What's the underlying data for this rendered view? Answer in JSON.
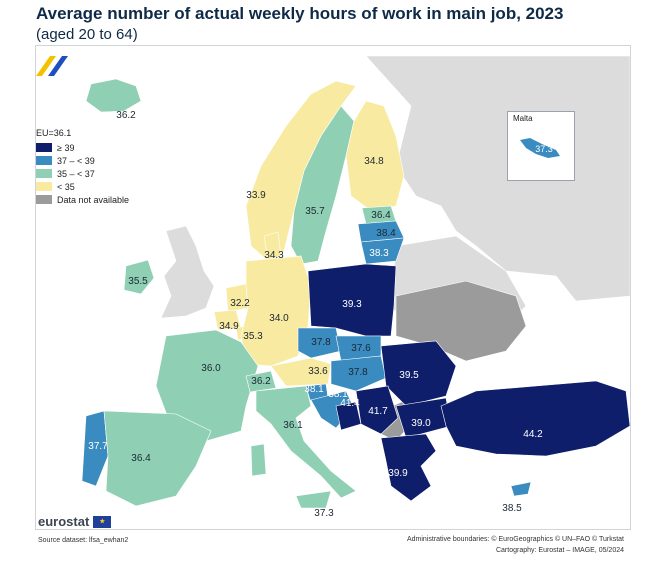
{
  "title": "Average number of actual weekly hours of work in main job, 2023",
  "subtitle": "(aged 20 to 64)",
  "legend": {
    "eu_label": "EU=36.1",
    "classes": [
      {
        "label": "≥ 39",
        "color": "#0e1e6a"
      },
      {
        "label": "37 – < 39",
        "color": "#3a8bbf"
      },
      {
        "label": "35 – < 37",
        "color": "#8fd0b5"
      },
      {
        "label": "< 35",
        "color": "#f8eba1"
      },
      {
        "label": "Data not available",
        "color": "#9b9b9b"
      }
    ]
  },
  "colors": {
    "dark": "#0e1e6a",
    "mid": "#3a8bbf",
    "teal": "#8fd0b5",
    "yellow": "#f8eba1",
    "na": "#9b9b9b",
    "non_eu": "#dcdcdc",
    "sea": "#ffffff"
  },
  "values": {
    "iceland": "36.2",
    "norway": "33.9",
    "sweden": "35.7",
    "finland": "34.8",
    "estonia": "36.4",
    "latvia": "38.4",
    "lithuania": "38.3",
    "denmark": "34.3",
    "ireland": "35.5",
    "netherlands": "32.2",
    "belgium": "34.9",
    "luxembourg": "35.3",
    "germany": "34.0",
    "poland": "39.3",
    "czechia": "37.8",
    "slovakia": "37.6",
    "austria": "33.6",
    "hungary": "37.8",
    "romania": "39.5",
    "france": "36.0",
    "switzerland": "36.2",
    "slovenia": "38.1",
    "croatia": "38.1",
    "bosnia": "41.4",
    "serbia": "41.7",
    "bulgaria": "39.0",
    "italy": "36.1",
    "portugal": "37.7",
    "spain": "36.4",
    "greece": "39.9",
    "turkey": "44.2",
    "cyprus": "38.5",
    "malta": "37.3",
    "sicily": "37.3"
  },
  "inset": {
    "name": "Malta"
  },
  "brand": {
    "name": "eurostat",
    "flag": "★"
  },
  "source": "Source dataset: lfsa_ewhan2",
  "credits": {
    "line1": "Administrative boundaries: © EuroGeographics © UN–FAO © Turkstat",
    "line2": "Cartography: Eurostat – IMAGE, 05/2024"
  }
}
